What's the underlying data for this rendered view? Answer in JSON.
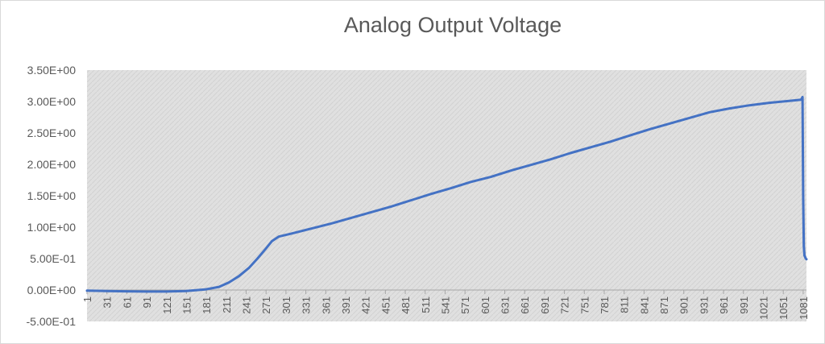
{
  "chart_data": {
    "type": "line",
    "title": "Analog Output Voltage",
    "xlabel": "",
    "ylabel": "",
    "y_ticks": [
      "-5.00E-01",
      "0.00E+00",
      "5.00E-01",
      "1.00E+00",
      "1.50E+00",
      "2.00E+00",
      "2.50E+00",
      "3.00E+00",
      "3.50E+00"
    ],
    "y_tick_values": [
      -0.5,
      0,
      0.5,
      1.0,
      1.5,
      2.0,
      2.5,
      3.0,
      3.5
    ],
    "x_ticks": [
      "1",
      "31",
      "61",
      "91",
      "121",
      "151",
      "181",
      "211",
      "241",
      "271",
      "301",
      "331",
      "361",
      "391",
      "421",
      "451",
      "481",
      "511",
      "541",
      "571",
      "601",
      "631",
      "661",
      "691",
      "721",
      "751",
      "781",
      "811",
      "841",
      "871",
      "901",
      "931",
      "961",
      "991",
      "1021",
      "1051",
      "1081"
    ],
    "x_tick_values": [
      1,
      31,
      61,
      91,
      121,
      151,
      181,
      211,
      241,
      271,
      301,
      331,
      361,
      391,
      421,
      451,
      481,
      511,
      541,
      571,
      601,
      631,
      661,
      691,
      721,
      751,
      781,
      811,
      841,
      871,
      901,
      931,
      961,
      991,
      1021,
      1051,
      1081
    ],
    "xlim": [
      1,
      1086
    ],
    "ylim": [
      -0.5,
      3.5
    ],
    "grid": "off",
    "legend": "none",
    "line_color": "#4472c4",
    "plot_background": "#e0e0e0",
    "series": [
      {
        "x": [
          1,
          30,
          60,
          90,
          120,
          150,
          180,
          200,
          215,
          230,
          245,
          258,
          270,
          280,
          290,
          310,
          340,
          370,
          400,
          430,
          460,
          490,
          520,
          550,
          580,
          610,
          640,
          670,
          700,
          730,
          760,
          790,
          820,
          850,
          880,
          910,
          940,
          970,
          1000,
          1030,
          1060,
          1078,
          1080,
          1081,
          1082,
          1083,
          1085,
          1086
        ],
        "y": [
          -0.01,
          -0.015,
          -0.02,
          -0.025,
          -0.025,
          -0.015,
          0.01,
          0.05,
          0.12,
          0.22,
          0.35,
          0.5,
          0.65,
          0.78,
          0.85,
          0.9,
          0.98,
          1.06,
          1.15,
          1.24,
          1.33,
          1.43,
          1.53,
          1.62,
          1.72,
          1.8,
          1.9,
          1.99,
          2.08,
          2.18,
          2.27,
          2.36,
          2.46,
          2.56,
          2.65,
          2.74,
          2.83,
          2.89,
          2.94,
          2.98,
          3.01,
          3.03,
          3.07,
          1.5,
          0.7,
          0.55,
          0.5,
          0.49
        ]
      }
    ]
  }
}
